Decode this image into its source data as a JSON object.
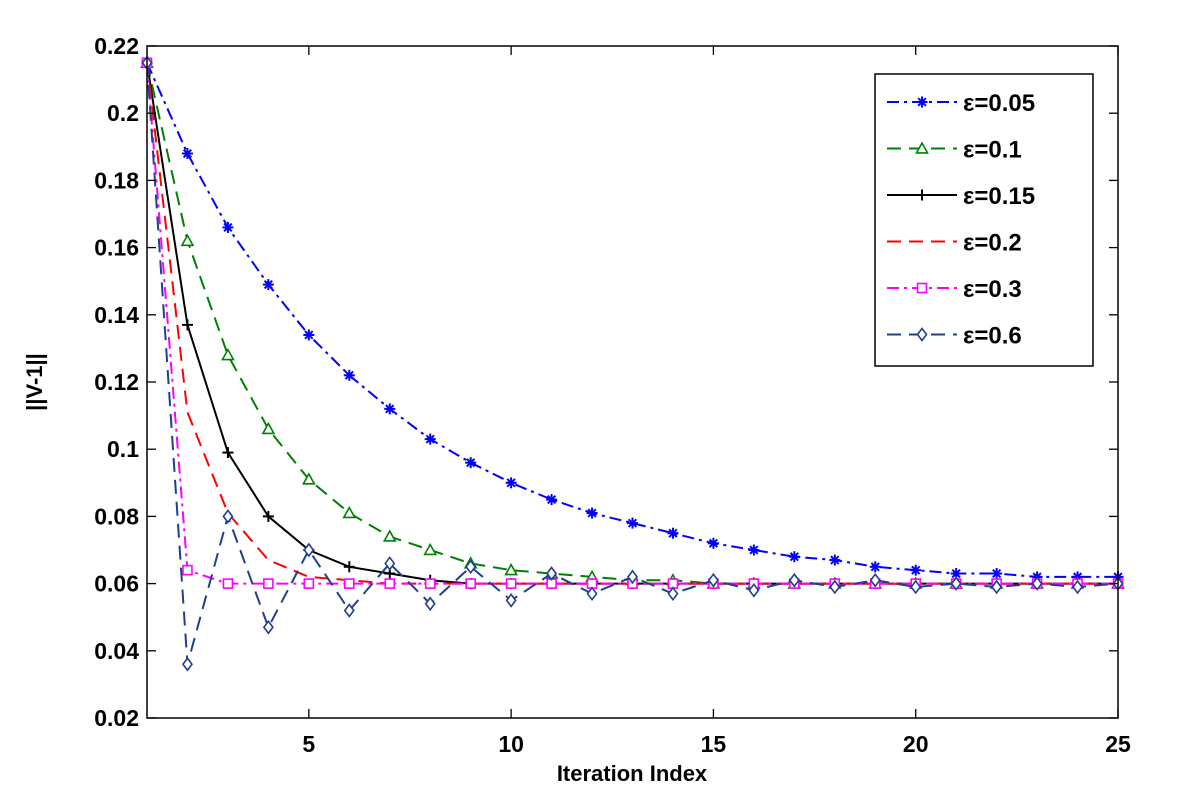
{
  "chart_data": {
    "type": "line",
    "title": "",
    "xlabel": "Iteration Index",
    "ylabel": "||V-1||",
    "xlim": [
      1,
      25
    ],
    "ylim": [
      0.02,
      0.22
    ],
    "xticks": [
      5,
      10,
      15,
      20,
      25
    ],
    "xtick_labels": [
      "5",
      "10",
      "15",
      "20",
      "25"
    ],
    "yticks": [
      0.02,
      0.04,
      0.06,
      0.08,
      0.1,
      0.12,
      0.14,
      0.16,
      0.18,
      0.2,
      0.22
    ],
    "ytick_labels": [
      "0.02",
      "0.04",
      "0.06",
      "0.08",
      "0.1",
      "0.12",
      "0.14",
      "0.16",
      "0.18",
      "0.2",
      "0.22"
    ],
    "grid": false,
    "legend_position": "top-right",
    "x": [
      1,
      2,
      3,
      4,
      5,
      6,
      7,
      8,
      9,
      10,
      11,
      12,
      13,
      14,
      15,
      16,
      17,
      18,
      19,
      20,
      21,
      22,
      23,
      24,
      25
    ],
    "series": [
      {
        "name": "ε=0.05",
        "color": "#0000ff",
        "dash": "dashdot",
        "marker": "asterisk",
        "values": [
          0.215,
          0.188,
          0.166,
          0.149,
          0.134,
          0.122,
          0.112,
          0.103,
          0.096,
          0.09,
          0.085,
          0.081,
          0.078,
          0.075,
          0.072,
          0.07,
          0.068,
          0.067,
          0.065,
          0.064,
          0.063,
          0.063,
          0.062,
          0.062,
          0.062
        ]
      },
      {
        "name": "ε=0.1",
        "color": "#008000",
        "dash": "dashed",
        "marker": "triangle",
        "values": [
          0.215,
          0.162,
          0.128,
          0.106,
          0.091,
          0.081,
          0.074,
          0.07,
          0.066,
          0.064,
          0.063,
          0.062,
          0.061,
          0.061,
          0.06,
          0.06,
          0.06,
          0.06,
          0.06,
          0.06,
          0.06,
          0.06,
          0.06,
          0.06,
          0.06
        ]
      },
      {
        "name": "ε=0.15",
        "color": "#000000",
        "dash": "solid",
        "marker": "plus",
        "values": [
          0.215,
          0.137,
          0.099,
          0.08,
          0.07,
          0.065,
          0.063,
          0.061,
          0.06,
          0.06,
          0.06,
          0.06,
          0.06,
          0.06,
          0.06,
          0.06,
          0.06,
          0.06,
          0.06,
          0.06,
          0.06,
          0.06,
          0.06,
          0.06,
          0.06
        ]
      },
      {
        "name": "ε=0.2",
        "color": "#ff0000",
        "dash": "dashed",
        "marker": "none",
        "values": [
          0.215,
          0.111,
          0.081,
          0.067,
          0.062,
          0.061,
          0.06,
          0.06,
          0.06,
          0.06,
          0.06,
          0.06,
          0.06,
          0.06,
          0.06,
          0.06,
          0.06,
          0.06,
          0.06,
          0.06,
          0.06,
          0.06,
          0.06,
          0.06,
          0.06
        ]
      },
      {
        "name": "ε=0.3",
        "color": "#ff00ff",
        "dash": "dashdot",
        "marker": "square",
        "values": [
          0.215,
          0.064,
          0.06,
          0.06,
          0.06,
          0.06,
          0.06,
          0.06,
          0.06,
          0.06,
          0.06,
          0.06,
          0.06,
          0.06,
          0.06,
          0.06,
          0.06,
          0.06,
          0.06,
          0.06,
          0.06,
          0.06,
          0.06,
          0.06,
          0.06
        ]
      },
      {
        "name": "ε=0.6",
        "color": "#1f3f8f",
        "dash": "dashed",
        "marker": "diamond",
        "values": [
          0.215,
          0.036,
          0.08,
          0.047,
          0.07,
          0.052,
          0.066,
          0.054,
          0.065,
          0.055,
          0.063,
          0.057,
          0.062,
          0.057,
          0.061,
          0.058,
          0.061,
          0.059,
          0.061,
          0.059,
          0.06,
          0.059,
          0.06,
          0.059,
          0.06
        ]
      }
    ]
  }
}
